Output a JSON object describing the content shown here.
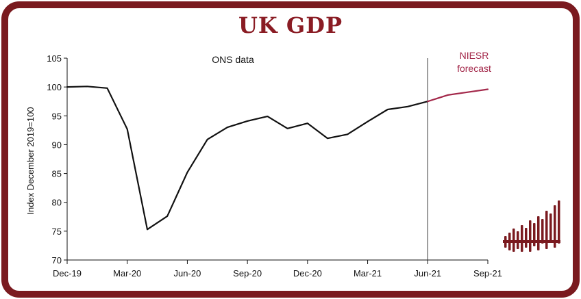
{
  "page": {
    "title": "UK GDP",
    "colors": {
      "frame": "#7a1a1f",
      "title": "#8a1c24",
      "actual": "#111111",
      "forecast": "#a3284a",
      "logo": "#7a1a1f"
    },
    "logo_icon": "niesr-bars-logo"
  },
  "chart_data": {
    "type": "line",
    "title": "UK GDP",
    "ylabel": "Index December 2019=100",
    "xlabel": "",
    "ylim": [
      70,
      105
    ],
    "yticks": [
      70,
      75,
      80,
      85,
      90,
      95,
      100,
      105
    ],
    "x_tick_labels": [
      "Dec-19",
      "Mar-20",
      "Jun-20",
      "Sep-20",
      "Dec-20",
      "Mar-21",
      "Jun-21",
      "Sep-21"
    ],
    "grid": false,
    "annotations": {
      "ons": "ONS data",
      "niesr_line1": "NIESR",
      "niesr_line2": "forecast",
      "divider_at": "Jun-21"
    },
    "series": [
      {
        "x": [
          "Dec-19",
          "Jan-20",
          "Feb-20",
          "Mar-20",
          "Apr-20",
          "May-20",
          "Jun-20",
          "Jul-20",
          "Aug-20",
          "Sep-20",
          "Oct-20",
          "Nov-20",
          "Dec-20",
          "Jan-21",
          "Feb-21",
          "Mar-21",
          "Apr-21",
          "May-21",
          "Jun-21"
        ],
        "values": [
          100.0,
          100.1,
          99.8,
          92.7,
          75.3,
          77.6,
          85.2,
          90.9,
          93.0,
          94.1,
          94.9,
          92.8,
          93.7,
          91.1,
          91.8,
          94.0,
          96.1,
          96.6,
          97.5
        ]
      },
      {
        "x": [
          "Jun-21",
          "Jul-21",
          "Aug-21",
          "Sep-21"
        ],
        "values": [
          97.5,
          98.6,
          99.1,
          99.6
        ]
      }
    ]
  }
}
